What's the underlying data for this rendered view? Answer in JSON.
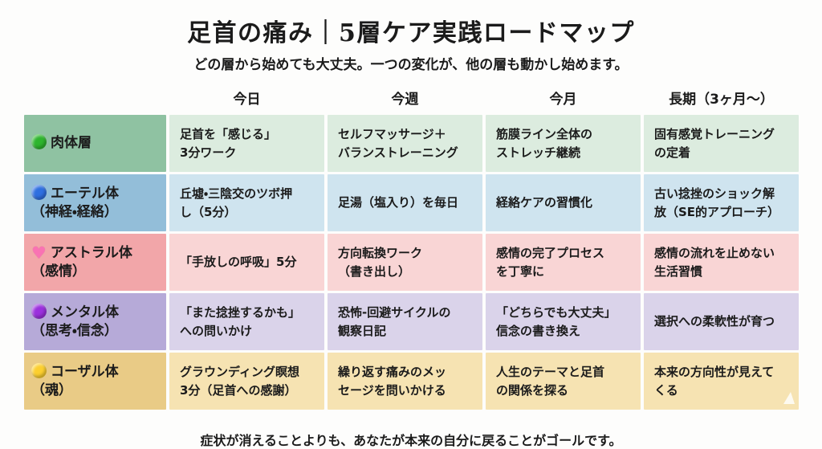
{
  "title": "足首の痛み｜5層ケア実践ロードマップ",
  "subtitle": "どの層から始めても大丈夫。一つの変化が、他の層も動かし始めます。",
  "footer": "症状が消えることよりも、あなたが本来の自分に戻ることがゴールです。",
  "table": {
    "columns": [
      "今日",
      "今週",
      "今月",
      "長期（3ヶ月〜）"
    ],
    "rows": [
      {
        "icon": "green-circle-icon",
        "icon_color": "#2eb52e",
        "label": "肉体層",
        "label_bg": "#8fc2a2",
        "cell_bg": "#dcecdf",
        "cells": [
          "足首を「感じる」\n3分ワーク",
          "セルフマッサージ＋\nバランストレーニング",
          "筋膜ライン全体の\nストレッチ継続",
          "固有感覚トレーニング\nの定着"
        ]
      },
      {
        "icon": "blue-circle-icon",
        "icon_color": "#2f6fe0",
        "label": "エーテル体\n（神経・経絡）",
        "label_bg": "#93bed9",
        "cell_bg": "#cfe4ef",
        "cells": [
          "丘墟・三陰交のツボ押\nし（5分）",
          "足湯（塩入り）を毎日",
          "経絡ケアの習慣化",
          "古い捻挫のショック解\n放（SE的アプローチ）"
        ]
      },
      {
        "icon": "pink-heart-icon",
        "icon_color": "#f973b3",
        "label": "アストラル体\n（感情）",
        "label_bg": "#f2a6a9",
        "cell_bg": "#f9d5d5",
        "cells": [
          "「手放しの呼吸」5分",
          "方向転換ワーク\n（書き出し）",
          "感情の完了プロセス\nを丁寧に",
          "感情の流れを止めない\n生活習慣"
        ]
      },
      {
        "icon": "purple-circle-icon",
        "icon_color": "#9b30dd",
        "label": "メンタル体\n（思考・信念）",
        "label_bg": "#b6aad8",
        "cell_bg": "#dad3ea",
        "cells": [
          "「また捻挫するかも」\nへの問いかけ",
          "恐怖-回避サイクルの\n観察日記",
          "「どちらでも大丈夫」\n信念の書き換え",
          "選択への柔軟性が育つ"
        ]
      },
      {
        "icon": "yellow-circle-icon",
        "icon_color": "#fccf2f",
        "label": "コーザル体\n（魂）",
        "label_bg": "#e9cb86",
        "cell_bg": "#f6e3b2",
        "cells": [
          "グラウンディング瞑想\n3分（足首への感謝）",
          "繰り返す痛みのメッ\nセージを問いかける",
          "人生のテーマと足首\nの関係を探る",
          "本来の方向性が見えて\nくる"
        ]
      }
    ]
  },
  "chart_data": {
    "type": "table",
    "title": "足首の痛み｜5層ケア実践ロードマップ",
    "subtitle": "どの層から始めても大丈夫。一つの変化が、他の層も動かし始めます。",
    "footnote": "症状が消えることよりも、あなたが本来の自分に戻ることがゴールです。",
    "columns": [
      "",
      "今日",
      "今週",
      "今月",
      "長期（3ヶ月〜）"
    ],
    "rows": [
      [
        "肉体層",
        "足首を「感じる」3分ワーク",
        "セルフマッサージ＋バランストレーニング",
        "筋膜ライン全体のストレッチ継続",
        "固有感覚トレーニングの定着"
      ],
      [
        "エーテル体（神経・経絡）",
        "丘墟・三陰交のツボ押し（5分）",
        "足湯（塩入り）を毎日",
        "経絡ケアの習慣化",
        "古い捻挫のショック解放（SE的アプローチ）"
      ],
      [
        "アストラル体（感情）",
        "「手放しの呼吸」5分",
        "方向転換ワーク（書き出し）",
        "感情の完了プロセスを丁寧に",
        "感情の流れを止めない生活習慣"
      ],
      [
        "メンタル体（思考・信念）",
        "「また捻挫するかも」への問いかけ",
        "恐怖-回避サイクルの観察日記",
        "「どちらでも大丈夫」信念の書き換え",
        "選択への柔軟性が育つ"
      ],
      [
        "コーザル体（魂）",
        "グラウンディング瞑想3分（足首への感謝）",
        "繰り返す痛みのメッセージを問いかける",
        "人生のテーマと足首の関係を探る",
        "本来の方向性が見えてくる"
      ]
    ],
    "row_colors": [
      "#8fc2a2",
      "#93bed9",
      "#f2a6a9",
      "#b6aad8",
      "#e9cb86"
    ],
    "legend_position": "none",
    "grid": false
  }
}
